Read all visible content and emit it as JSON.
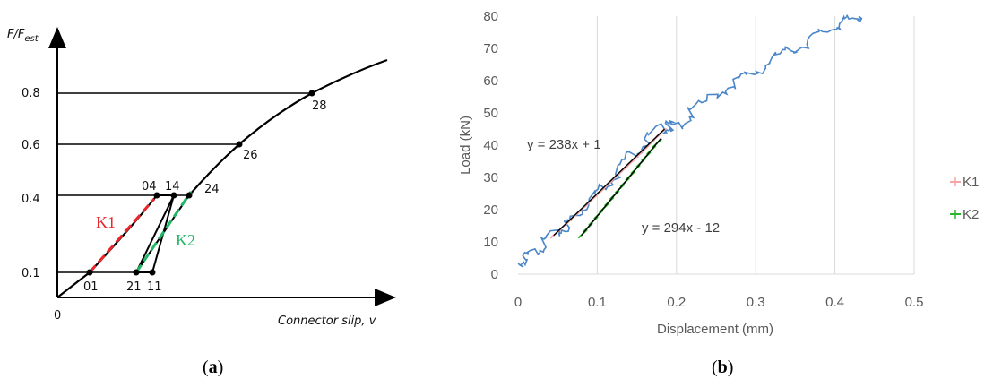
{
  "chart_data": [
    {
      "panel": "(a)",
      "caption_letter": "a",
      "type": "line",
      "ylabel_main": "F/F",
      "ylabel_sub": "est",
      "xlabel": "Connector slip, v",
      "origin_label": "0",
      "y_ticks": [
        "0.8",
        "0.6",
        "0.4",
        "0.1"
      ],
      "point_labels": [
        "01",
        "04",
        "14",
        "24",
        "21",
        "11",
        "26",
        "28"
      ],
      "series": [
        {
          "name": "K1",
          "color": "#e8262b",
          "style": "dashed"
        },
        {
          "name": "K2",
          "color": "#1fb866",
          "style": "dashed"
        }
      ]
    },
    {
      "panel": "(b)",
      "caption_letter": "b",
      "type": "line",
      "xlabel": "Displacement (mm)",
      "ylabel": "Load (kN)",
      "xlim": [
        0,
        0.5
      ],
      "ylim": [
        0,
        80
      ],
      "x_ticks": [
        "0",
        "0.1",
        "0.2",
        "0.3",
        "0.4",
        "0.5"
      ],
      "y_ticks": [
        "0",
        "10",
        "20",
        "30",
        "40",
        "50",
        "60",
        "70",
        "80"
      ],
      "grid": "vertical",
      "legend_position": "right",
      "series": [
        {
          "name": "",
          "color": "#4a86c8",
          "x": [
            0.0,
            0.01,
            0.02,
            0.035,
            0.05,
            0.065,
            0.08,
            0.1,
            0.12,
            0.14,
            0.16,
            0.18,
            0.19,
            0.2,
            0.22,
            0.25,
            0.28,
            0.3,
            0.33,
            0.35,
            0.38,
            0.4,
            0.42,
            0.43
          ],
          "y": [
            3,
            5,
            7,
            10,
            13,
            16,
            20,
            25,
            30,
            36,
            41,
            45,
            46,
            46,
            50,
            56,
            60,
            63,
            68,
            70,
            74,
            77,
            79,
            80
          ]
        },
        {
          "name": "K1",
          "color": "#f4a6a6",
          "x": [
            0.045,
            0.08,
            0.11,
            0.14,
            0.165,
            0.185
          ],
          "y": [
            12,
            20,
            27,
            34,
            40,
            45
          ]
        },
        {
          "name": "K2",
          "color": "#2bb52b",
          "x": [
            0.08,
            0.1,
            0.12,
            0.14,
            0.16,
            0.18
          ],
          "y": [
            12,
            18,
            24,
            30,
            36,
            42
          ]
        }
      ],
      "annotations": [
        "y = 238x + 1",
        "y = 294x - 12"
      ]
    }
  ]
}
